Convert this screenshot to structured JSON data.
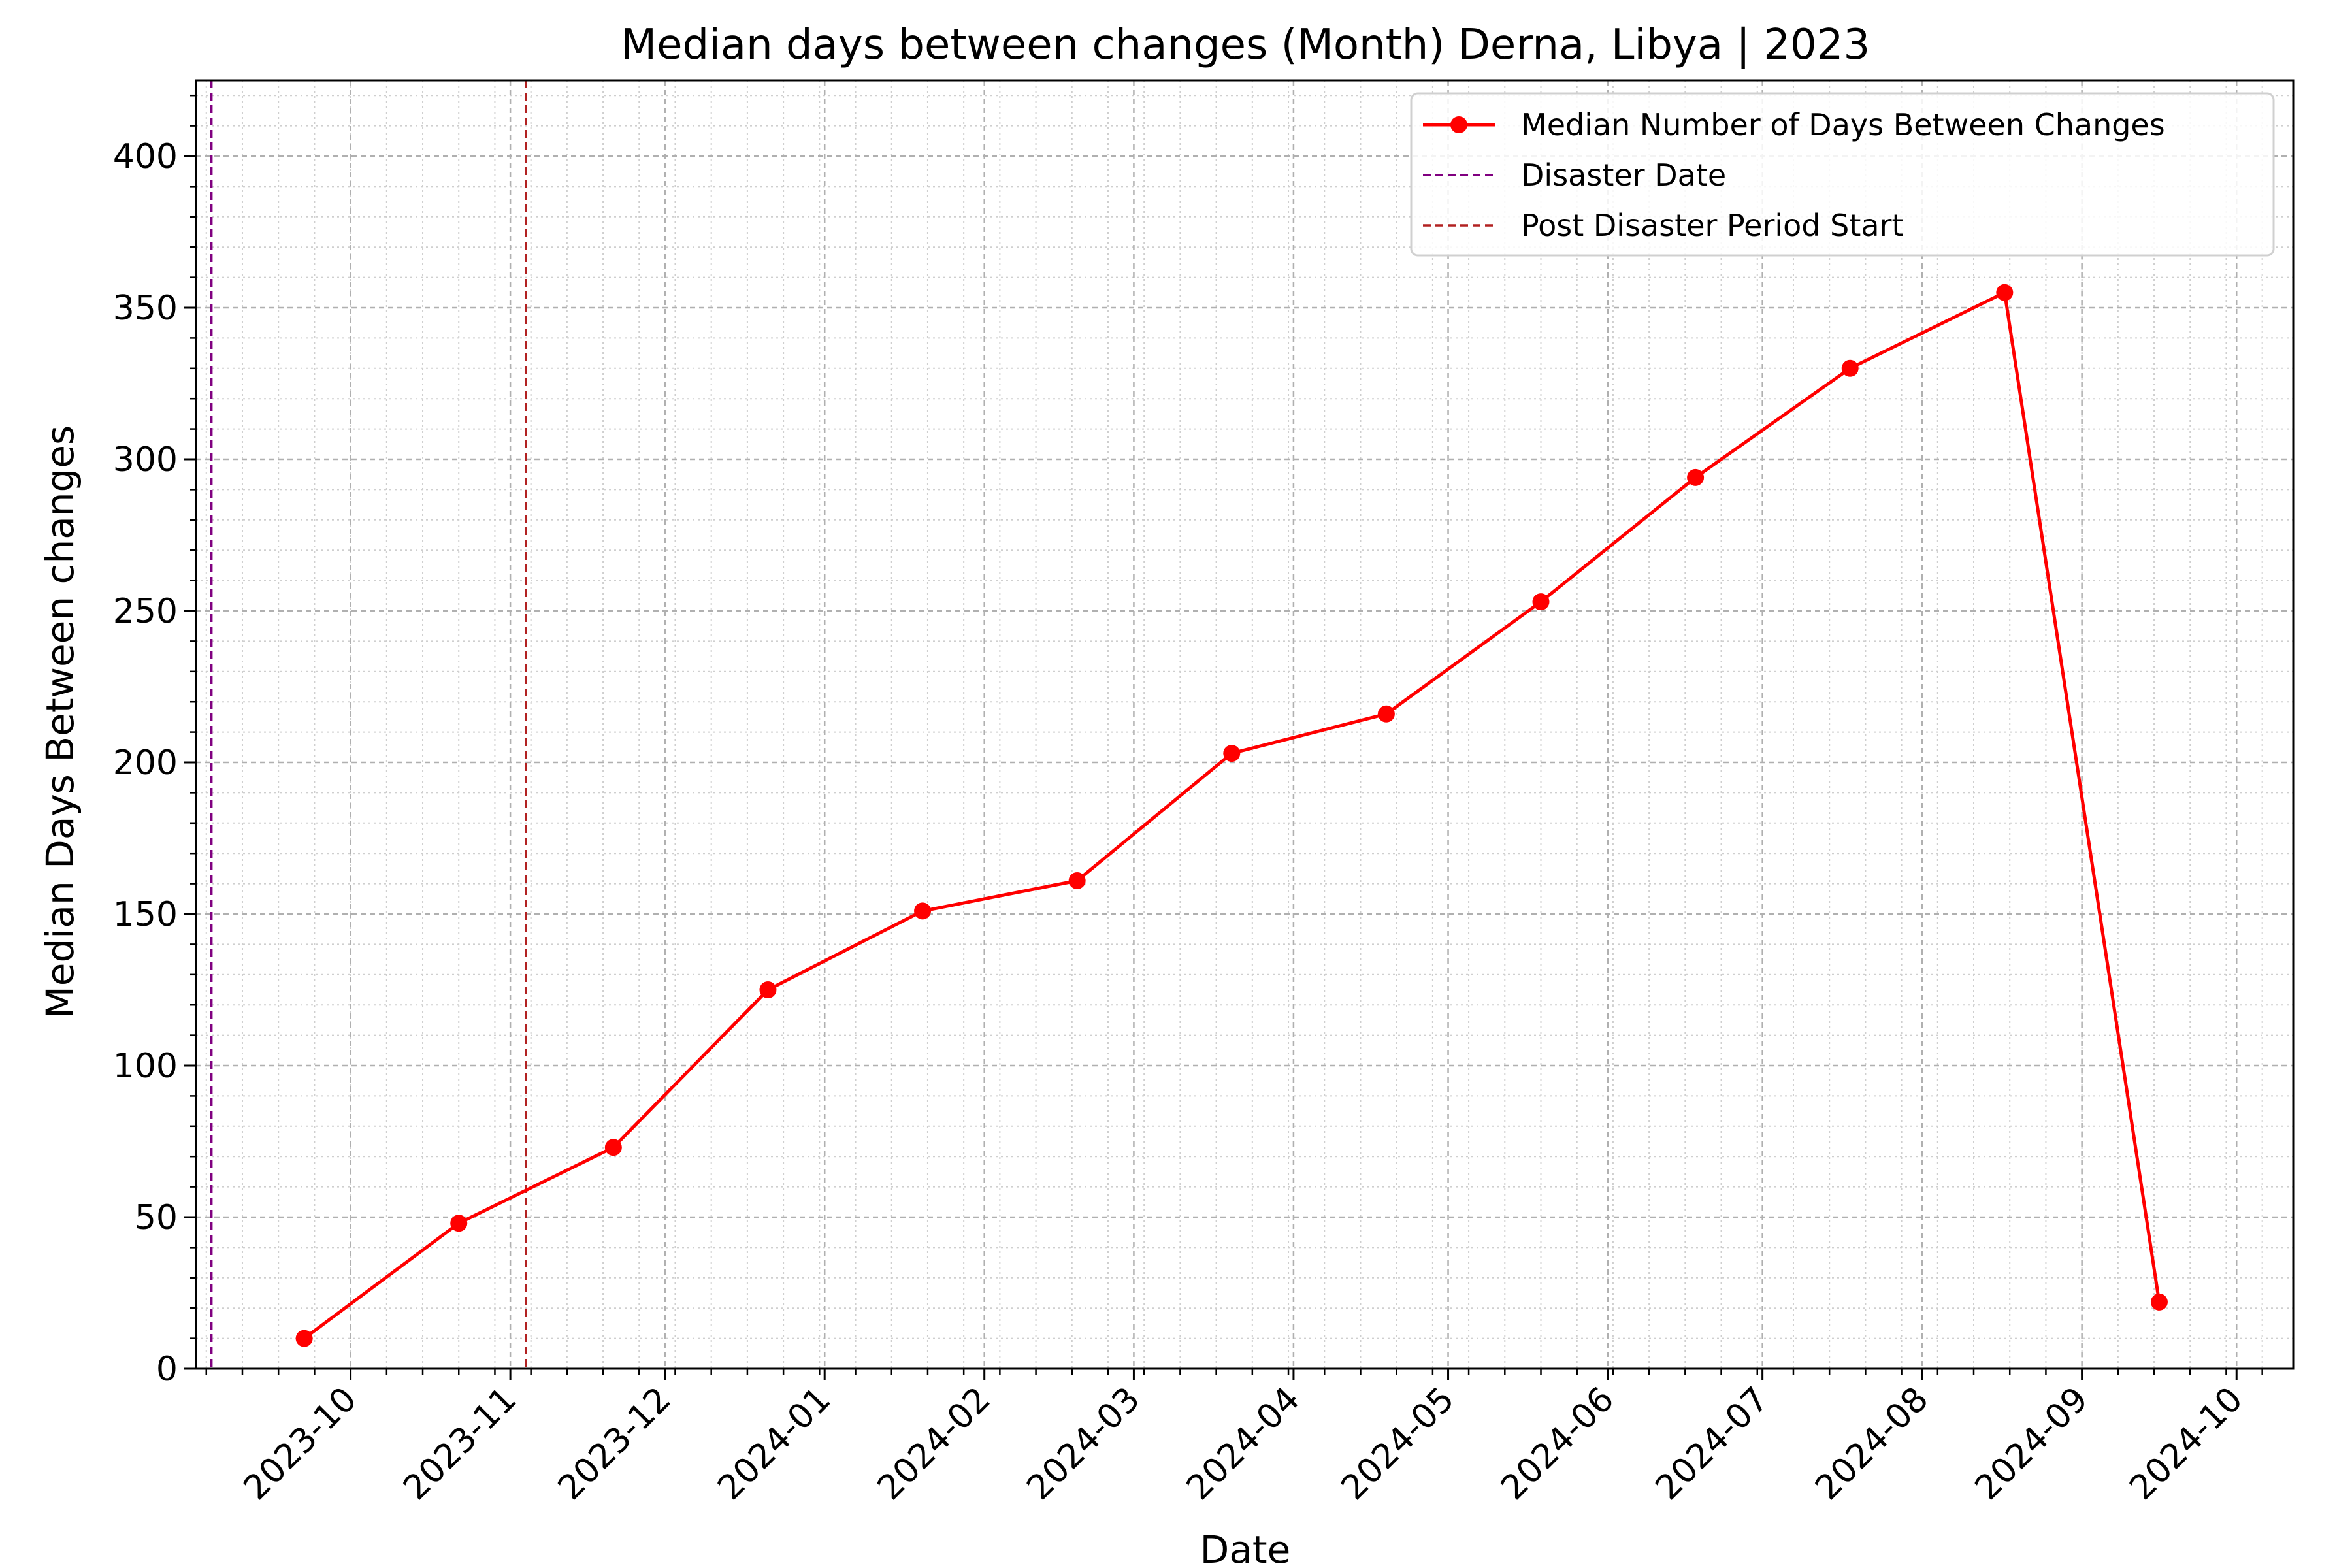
{
  "chart_data": {
    "type": "line",
    "title": "Median days between changes (Month) Derna, Libya | 2023",
    "xlabel": "Date",
    "ylabel": "Median Days Between changes",
    "xlim": [
      "2023-09-01",
      "2024-10-12"
    ],
    "ylim": [
      0,
      425
    ],
    "yticks": [
      0,
      50,
      100,
      150,
      200,
      250,
      300,
      350,
      400
    ],
    "xticks": [
      {
        "date": "2023-10-01",
        "label": "2023-10"
      },
      {
        "date": "2023-11-01",
        "label": "2023-11"
      },
      {
        "date": "2023-12-01",
        "label": "2023-12"
      },
      {
        "date": "2024-01-01",
        "label": "2024-01"
      },
      {
        "date": "2024-02-01",
        "label": "2024-02"
      },
      {
        "date": "2024-03-01",
        "label": "2024-03"
      },
      {
        "date": "2024-04-01",
        "label": "2024-04"
      },
      {
        "date": "2024-05-01",
        "label": "2024-05"
      },
      {
        "date": "2024-06-01",
        "label": "2024-06"
      },
      {
        "date": "2024-07-01",
        "label": "2024-07"
      },
      {
        "date": "2024-08-01",
        "label": "2024-08"
      },
      {
        "date": "2024-09-01",
        "label": "2024-09"
      },
      {
        "date": "2024-10-01",
        "label": "2024-10"
      }
    ],
    "grid": true,
    "legend_position": "top-right",
    "series": [
      {
        "name": "Median Number of Days Between Changes",
        "color": "#ff0000",
        "marker": "circle",
        "x": [
          "2023-09-22",
          "2023-10-22",
          "2023-11-21",
          "2023-12-21",
          "2024-01-20",
          "2024-02-19",
          "2024-03-20",
          "2024-04-19",
          "2024-05-19",
          "2024-06-18",
          "2024-07-18",
          "2024-08-17",
          "2024-09-16"
        ],
        "y": [
          10,
          48,
          73,
          125,
          151,
          161,
          203,
          216,
          253,
          294,
          330,
          355,
          22
        ]
      }
    ],
    "vlines": [
      {
        "name": "Disaster Date",
        "date": "2023-09-04",
        "color": "#800080",
        "style": "dashed"
      },
      {
        "name": "Post Disaster Period Start",
        "date": "2023-11-04",
        "color": "#b22222",
        "style": "dashed"
      }
    ]
  }
}
